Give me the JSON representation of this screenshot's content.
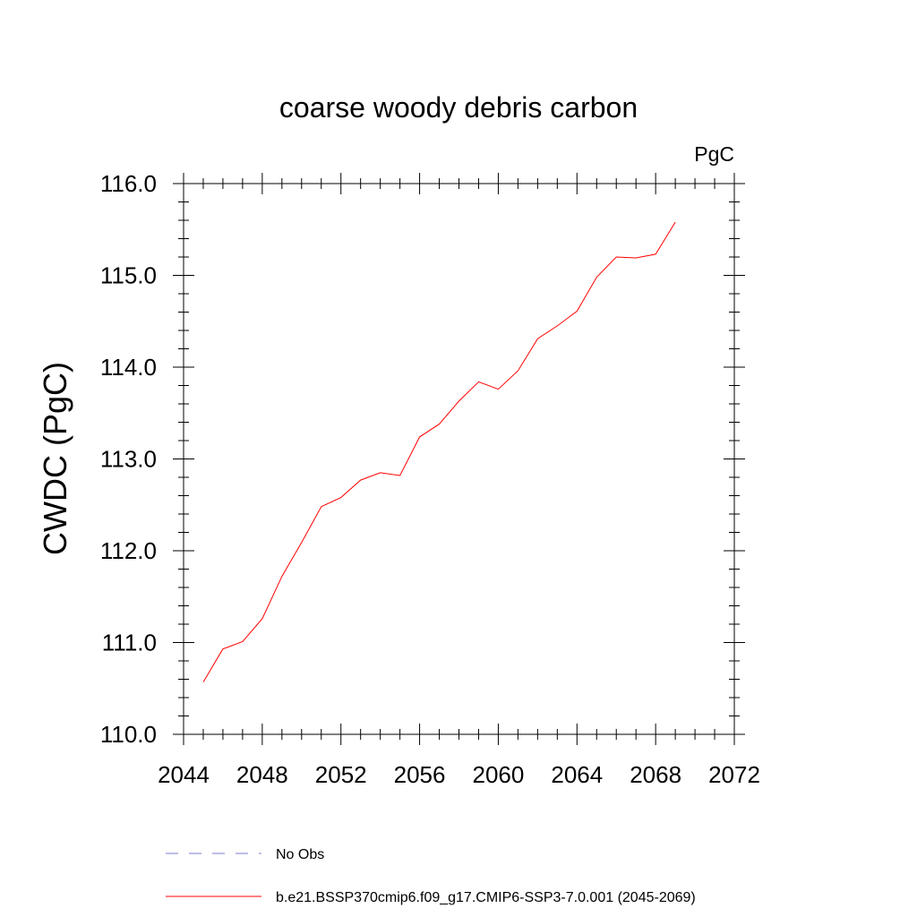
{
  "chart_data": {
    "type": "line",
    "title": "coarse woody debris carbon",
    "units_label": "PgC",
    "ylabel": "CWDC  (PgC)",
    "xlabel": "",
    "xlim": [
      2044,
      2072
    ],
    "ylim": [
      110.0,
      116.0
    ],
    "xticks": [
      2044,
      2048,
      2052,
      2056,
      2060,
      2064,
      2068,
      2072
    ],
    "xtick_labels": [
      "2044",
      "2048",
      "2052",
      "2056",
      "2060",
      "2064",
      "2068",
      "2072"
    ],
    "yticks": [
      110,
      111,
      112,
      113,
      114,
      115,
      116
    ],
    "ytick_labels": [
      "110.0",
      "111.0",
      "112.0",
      "113.0",
      "114.0",
      "115.0",
      "116.0"
    ],
    "grid": false,
    "series": [
      {
        "name": "b.e21.BSSP370cmip6.f09_g17.CMIP6-SSP3-7.0.001 (2045-2069)",
        "color": "#ff0000",
        "dash": "solid",
        "x": [
          2045,
          2046,
          2047,
          2048,
          2049,
          2050,
          2051,
          2052,
          2053,
          2054,
          2055,
          2056,
          2057,
          2058,
          2059,
          2060,
          2061,
          2062,
          2063,
          2064,
          2065,
          2066,
          2067,
          2068,
          2069
        ],
        "y": [
          110.57,
          110.93,
          111.01,
          111.26,
          111.72,
          112.09,
          112.48,
          112.58,
          112.77,
          112.85,
          112.82,
          113.24,
          113.38,
          113.63,
          113.84,
          113.76,
          113.96,
          114.31,
          114.45,
          114.61,
          114.98,
          115.2,
          115.19,
          115.23,
          115.58
        ]
      }
    ],
    "legend": {
      "placement": "bottom",
      "entries": [
        {
          "label": "No Obs",
          "color": "#7b7bcc",
          "dash": "dashed"
        },
        {
          "label": "b.e21.BSSP370cmip6.f09_g17.CMIP6-SSP3-7.0.001 (2045-2069)",
          "color": "#ff0000",
          "dash": "solid"
        }
      ]
    }
  }
}
